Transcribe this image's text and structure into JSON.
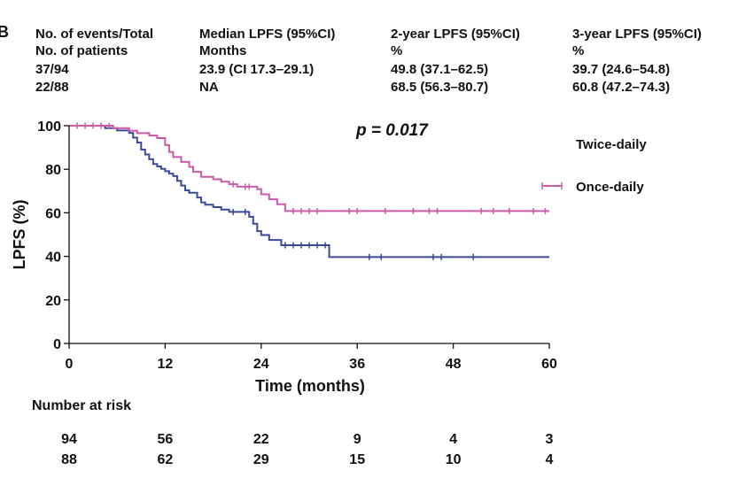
{
  "panel_label": "B",
  "summary_table": {
    "headers": [
      [
        "No. of events/Total",
        "No. of patients"
      ],
      [
        "Median LPFS (95%CI)",
        "Months"
      ],
      [
        "2-year LPFS (95%CI)",
        "%"
      ],
      [
        "3-year LPFS (95%CI)",
        "%"
      ]
    ],
    "rows": [
      [
        "37/94",
        "23.9 (CI 17.3–29.1)",
        "49.8 (37.1–62.5)",
        "39.7 (24.6–54.8)"
      ],
      [
        "22/88",
        "NA",
        "68.5 (56.3–80.7)",
        "60.8 (47.2–74.3)"
      ]
    ]
  },
  "chart_data": {
    "type": "line",
    "subtype": "kaplan-meier",
    "title": "",
    "xlabel": "Time (months)",
    "ylabel": "LPFS (%)",
    "xlim": [
      0,
      60
    ],
    "ylim": [
      0,
      100
    ],
    "xticks": [
      0,
      12,
      24,
      36,
      48,
      60
    ],
    "yticks": [
      0,
      20,
      40,
      60,
      80,
      100
    ],
    "annotation": "p = 0.017",
    "legend": [
      "Twice-daily",
      "Once-daily"
    ],
    "series": [
      {
        "name": "Twice-daily",
        "color": "#3a4a9a",
        "steps": [
          [
            0,
            100
          ],
          [
            4.5,
            98.9
          ],
          [
            6,
            97.8
          ],
          [
            7.5,
            96.7
          ],
          [
            8,
            94.5
          ],
          [
            8.5,
            92.3
          ],
          [
            9,
            89
          ],
          [
            9.5,
            86.8
          ],
          [
            10,
            84.6
          ],
          [
            10.5,
            82.4
          ],
          [
            11,
            81.3
          ],
          [
            11.5,
            80.2
          ],
          [
            12,
            79.1
          ],
          [
            12.5,
            78
          ],
          [
            13,
            76.9
          ],
          [
            13.5,
            74.7
          ],
          [
            14,
            72.5
          ],
          [
            14.5,
            70.3
          ],
          [
            15,
            69.2
          ],
          [
            16,
            67
          ],
          [
            16.5,
            64.8
          ],
          [
            17,
            63.7
          ],
          [
            18,
            62.6
          ],
          [
            19,
            61.5
          ],
          [
            20,
            60.4
          ],
          [
            22.5,
            58.2
          ],
          [
            23,
            55
          ],
          [
            23.5,
            51.6
          ],
          [
            24,
            49.8
          ],
          [
            25,
            47.5
          ],
          [
            26.5,
            45.1
          ],
          [
            32.5,
            39.7
          ],
          [
            60,
            39.7
          ]
        ],
        "censored": [
          [
            20.5,
            60.4
          ],
          [
            22,
            60.4
          ],
          [
            27,
            45.1
          ],
          [
            28,
            45.1
          ],
          [
            29,
            45.1
          ],
          [
            30,
            45.1
          ],
          [
            31,
            45.1
          ],
          [
            32,
            45.1
          ],
          [
            37.5,
            39.7
          ],
          [
            39,
            39.7
          ],
          [
            45.5,
            39.7
          ],
          [
            46.5,
            39.7
          ],
          [
            50.5,
            39.7
          ]
        ]
      },
      {
        "name": "Once-daily",
        "color": "#cc5aa8",
        "steps": [
          [
            0,
            100
          ],
          [
            5.5,
            98.9
          ],
          [
            7.5,
            97.7
          ],
          [
            8.5,
            96.6
          ],
          [
            10,
            95.5
          ],
          [
            11,
            94.3
          ],
          [
            12,
            91.1
          ],
          [
            12.5,
            87.9
          ],
          [
            13,
            85.6
          ],
          [
            14,
            83.4
          ],
          [
            15,
            81.1
          ],
          [
            15.5,
            78.8
          ],
          [
            16.5,
            76.5
          ],
          [
            18,
            75.4
          ],
          [
            19,
            74.3
          ],
          [
            20,
            73.1
          ],
          [
            21,
            72
          ],
          [
            23.5,
            70.9
          ],
          [
            24,
            68.5
          ],
          [
            25,
            66.2
          ],
          [
            26,
            63.9
          ],
          [
            27,
            60.8
          ],
          [
            60,
            60.8
          ]
        ],
        "censored": [
          [
            1,
            100
          ],
          [
            2,
            100
          ],
          [
            3,
            100
          ],
          [
            4,
            100
          ],
          [
            5,
            100
          ],
          [
            20.5,
            73.1
          ],
          [
            22,
            72
          ],
          [
            22.5,
            72
          ],
          [
            28,
            60.8
          ],
          [
            29,
            60.8
          ],
          [
            30,
            60.8
          ],
          [
            31,
            60.8
          ],
          [
            35,
            60.8
          ],
          [
            36,
            60.8
          ],
          [
            39.5,
            60.8
          ],
          [
            43,
            60.8
          ],
          [
            45,
            60.8
          ],
          [
            46,
            60.8
          ],
          [
            51.5,
            60.8
          ],
          [
            53,
            60.8
          ],
          [
            55,
            60.8
          ],
          [
            58,
            60.8
          ],
          [
            59.5,
            60.8
          ]
        ]
      }
    ],
    "risk_table": {
      "title": "Number at risk",
      "times": [
        0,
        12,
        24,
        36,
        48,
        60
      ],
      "rows": [
        [
          "94",
          "56",
          "22",
          "9",
          "4",
          "3"
        ],
        [
          "88",
          "62",
          "29",
          "15",
          "10",
          "4"
        ]
      ]
    }
  }
}
